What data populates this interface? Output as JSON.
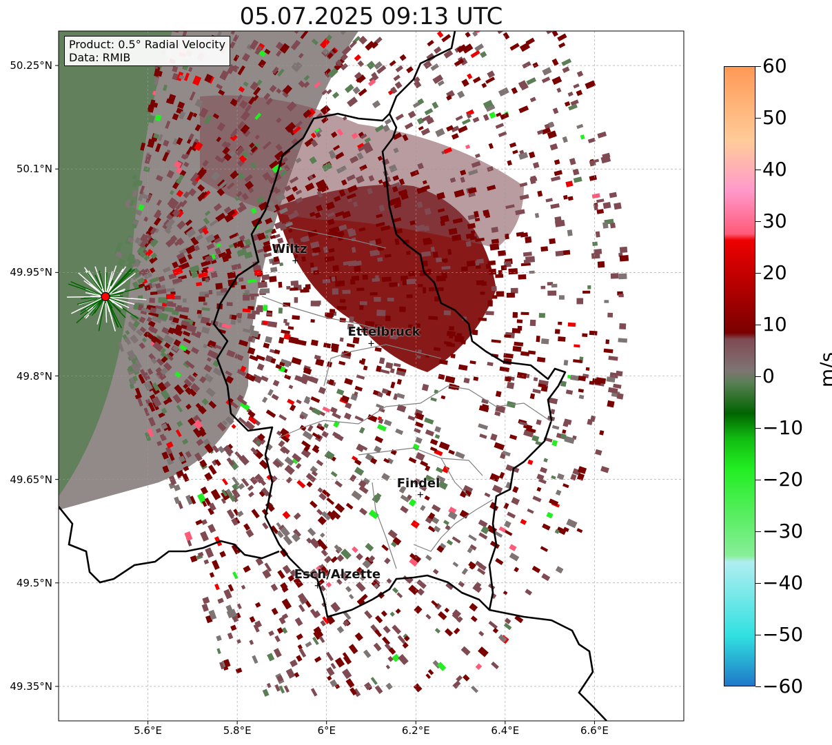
{
  "title": "05.07.2025 09:13 UTC",
  "info": {
    "product": "Product: 0.5° Radial Velocity",
    "data_source": "Data: RMIB"
  },
  "axes": {
    "lat_ticks": [
      "50.25°N",
      "50.1°N",
      "49.95°N",
      "49.8°N",
      "49.65°N",
      "49.5°N",
      "49.35°N"
    ],
    "lon_ticks": [
      "5.6°E",
      "5.8°E",
      "6°E",
      "6.2°E",
      "6.4°E",
      "6.6°E"
    ],
    "lat_range": [
      49.3,
      50.3
    ],
    "lon_range": [
      5.4,
      6.8
    ],
    "grid": true
  },
  "cities": [
    {
      "name": "Wiltz",
      "lon": 5.93,
      "lat": 49.967
    },
    {
      "name": "Ettelbruck",
      "lon": 6.1,
      "lat": 49.847
    },
    {
      "name": "Findel",
      "lon": 6.21,
      "lat": 49.628
    },
    {
      "name": "Esch/Alzette",
      "lon": 5.98,
      "lat": 49.496
    }
  ],
  "radar_site": {
    "lon": 5.505,
    "lat": 49.915,
    "color": "#ff0000"
  },
  "colorbar": {
    "unit": "m/s",
    "range": [
      -60,
      60
    ],
    "ticks": [
      "60",
      "50",
      "40",
      "30",
      "20",
      "10",
      "0",
      "−10",
      "−20",
      "−30",
      "−40",
      "−50",
      "−60"
    ],
    "colors": {
      "strong_negative": "#1f78c8",
      "cyan": "#30e0e0",
      "light_cyan": "#b0eef0",
      "light_green": "#88ee99",
      "bright_green": "#22ee22",
      "green": "#11bb11",
      "dark_green": "#006400",
      "olive_green": "#5a7f55",
      "grey": "#7f7474",
      "mauve": "#7f4a52",
      "dark_red": "#7a0000",
      "red": "#ee0000",
      "pink": "#ff5a78",
      "light_pink": "#ff99cc",
      "peach": "#ffcc99",
      "orange": "#ff9955"
    }
  }
}
